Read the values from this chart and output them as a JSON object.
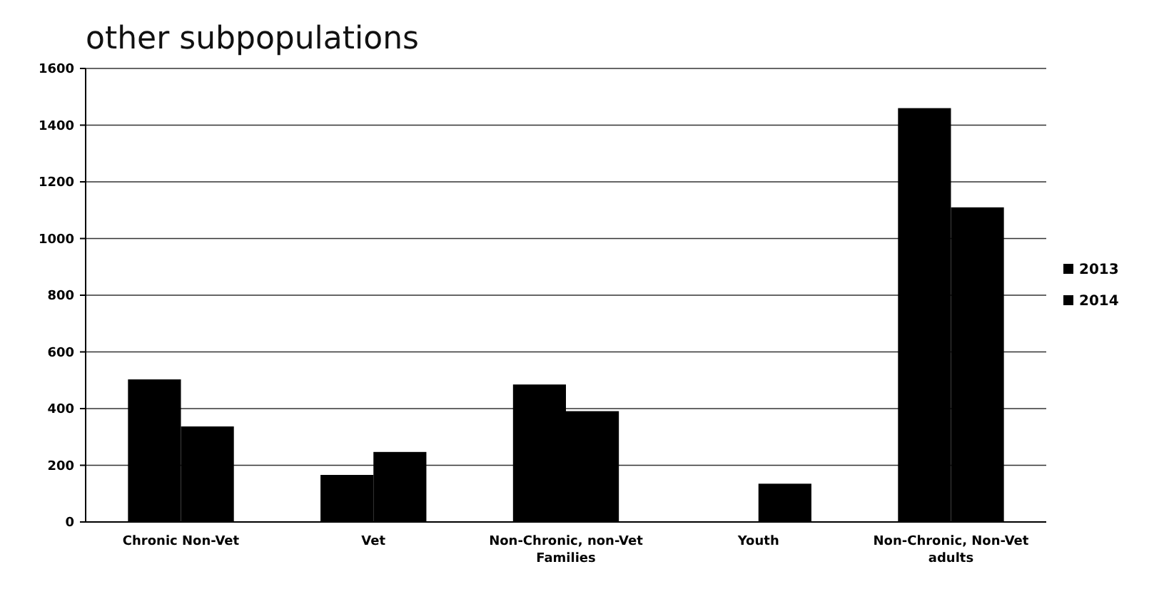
{
  "chart_data": {
    "type": "bar",
    "title": "other subpopulations",
    "categories": [
      "Chronic Non-Vet",
      "Vet",
      "Non-Chronic, non-Vet Families",
      "Youth",
      "Non-Chronic, Non-Vet adults"
    ],
    "series": [
      {
        "name": "2013",
        "color": "#000000",
        "values": [
          503,
          166,
          485,
          null,
          1460
        ]
      },
      {
        "name": "2014",
        "color": "#000000",
        "values": [
          337,
          247,
          391,
          135,
          1110
        ]
      }
    ],
    "ylim": [
      0,
      1600
    ],
    "yticks": [
      0,
      200,
      400,
      600,
      800,
      1000,
      1200,
      1400,
      1600
    ],
    "grid": "y",
    "legend": "right"
  }
}
